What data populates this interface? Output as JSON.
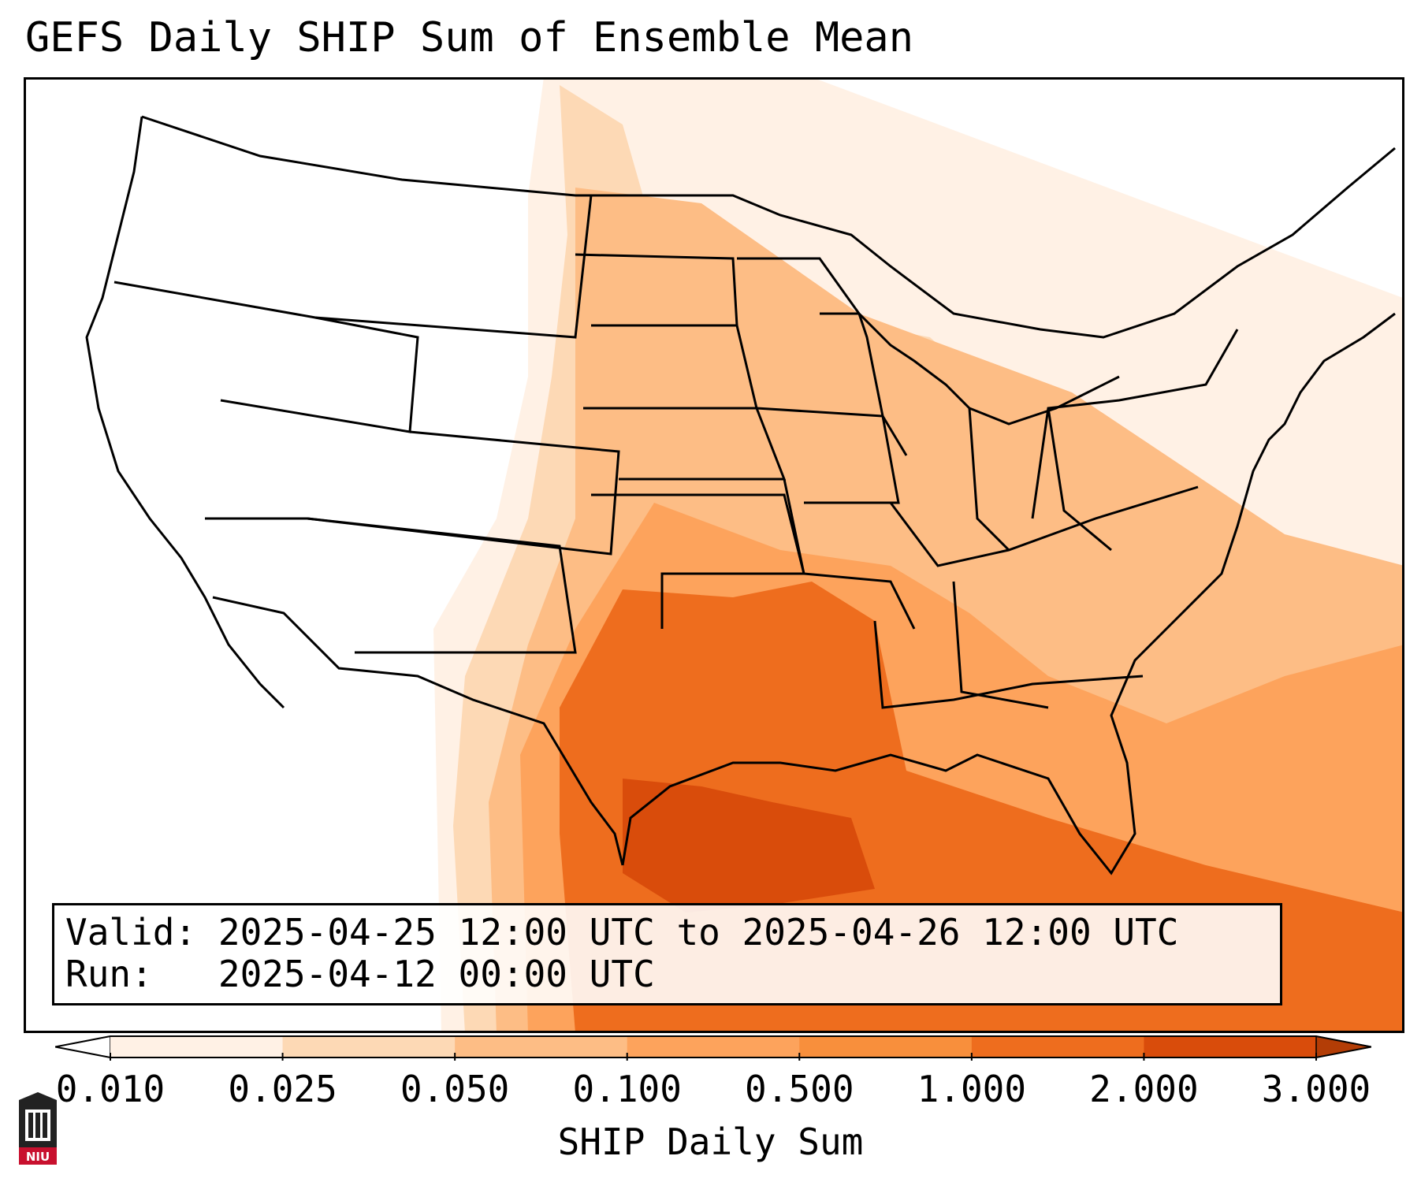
{
  "title": "GEFS Daily SHIP Sum of Ensemble Mean",
  "info": {
    "valid_label": "Valid:",
    "valid_value": "2025-04-25 12:00 UTC to 2025-04-26 12:00 UTC",
    "run_label": "Run:",
    "run_value": "2025-04-12 00:00 UTC"
  },
  "colorbar": {
    "label": "SHIP Daily Sum",
    "ticks": [
      "0.010",
      "0.025",
      "0.050",
      "0.100",
      "0.500",
      "1.000",
      "2.000",
      "3.000"
    ],
    "colors": [
      "#fff1e5",
      "#fdd9b5",
      "#fdbd85",
      "#fda35c",
      "#f88f3c",
      "#ee6d1e",
      "#d94c0b"
    ],
    "under_color": "#ffffff",
    "over_color": "#b33d06"
  },
  "logo": {
    "text": "NIU",
    "color": "#c8102e"
  }
}
